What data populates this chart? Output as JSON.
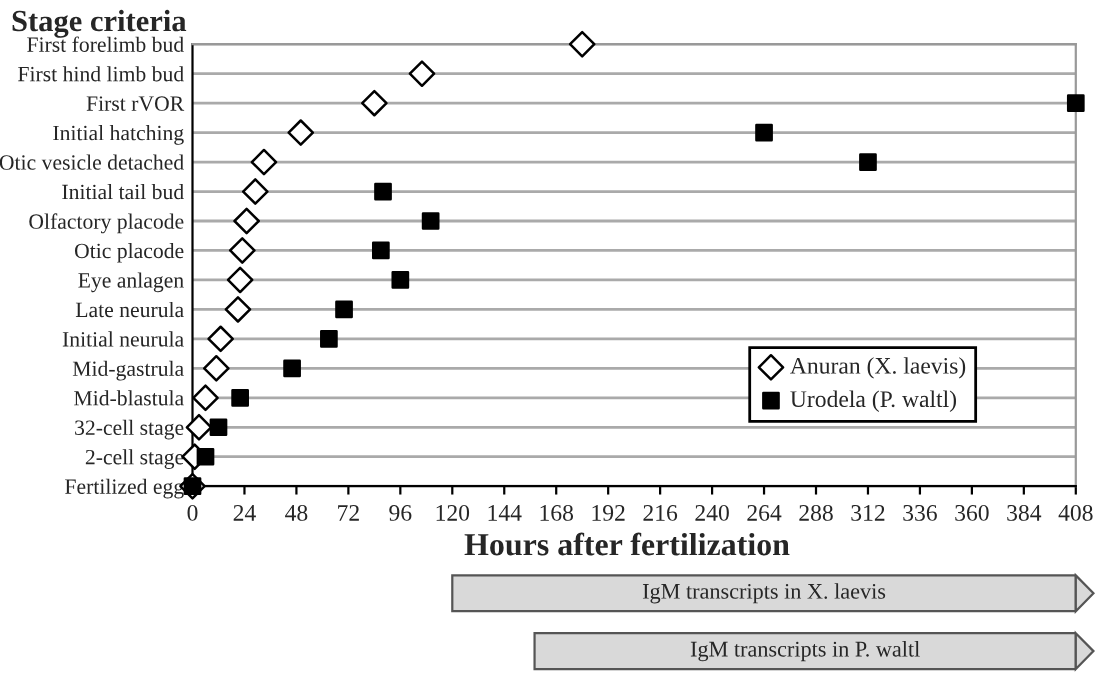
{
  "chart_data": [
    {
      "type": "scatter",
      "ylabel": "Stage criteria",
      "xlabel": "Hours after fertilization",
      "categories": [
        "First forelimb bud",
        "First hind limb bud",
        "First rVOR",
        "Initial hatching",
        "Otic vesicle detached",
        "Initial tail bud",
        "Olfactory placode",
        "Otic placode",
        "Eye anlagen",
        "Late neurula",
        "Initial neurula",
        "Mid-gastrula",
        "Mid-blastula",
        "32-cell stage",
        "2-cell stage",
        "Fertilized egg"
      ],
      "orientation": "horizontal",
      "series": [
        {
          "name": "Anuran (X. laevis)",
          "color": "#ffffff",
          "marker": "diamond",
          "values": [
            180,
            106,
            84,
            50,
            33,
            29,
            25,
            23,
            22,
            21,
            13,
            11,
            6,
            3,
            1,
            0
          ]
        },
        {
          "name": "Urodela (P. waltl)",
          "color": "#000000",
          "marker": "square",
          "values": [
            null,
            null,
            408,
            264,
            312,
            88,
            110,
            87,
            96,
            70,
            63,
            46,
            22,
            12,
            6,
            0
          ]
        }
      ],
      "xlim": [
        0,
        408
      ],
      "xticks": [
        0,
        24,
        48,
        72,
        96,
        120,
        144,
        168,
        192,
        216,
        240,
        264,
        288,
        312,
        336,
        360,
        384,
        408
      ],
      "grid": "y",
      "legend": "bottom right"
    },
    {
      "type": "bar",
      "orientation": "horizontal",
      "categories": [
        null,
        null
      ],
      "base": [
        120,
        158
      ],
      "values": [
        288,
        250
      ],
      "value_labels": [
        "IgM transcripts in X. laevis",
        "IgM transcripts in P. waltl"
      ],
      "color": "#d9d9d9",
      "xlim": [
        0,
        408
      ],
      "tick_labels": false
    }
  ]
}
